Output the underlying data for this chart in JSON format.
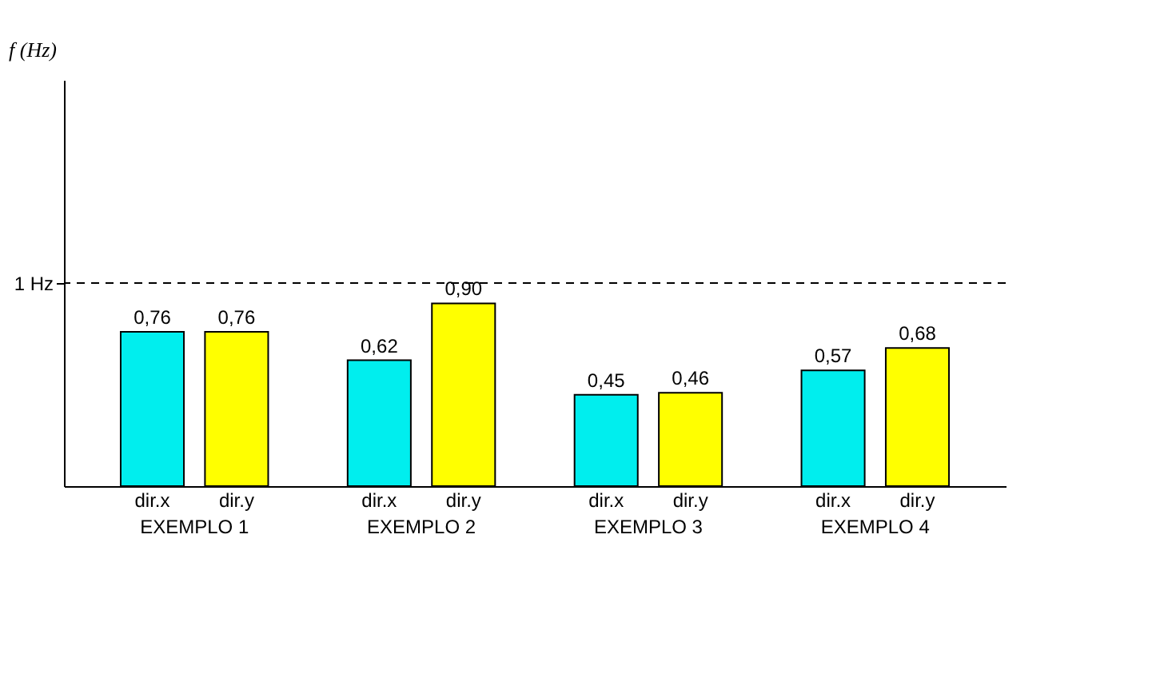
{
  "chart_data": {
    "type": "bar",
    "ylabel": "f (Hz)",
    "categories": [
      "EXEMPLO 1",
      "EXEMPLO 2",
      "EXEMPLO 3",
      "EXEMPLO 4"
    ],
    "series": [
      {
        "name": "dir.x",
        "color": "#00eeee",
        "values": [
          0.76,
          0.62,
          0.45,
          0.57
        ],
        "value_labels": [
          "0,76",
          "0,62",
          "0,45",
          "0,57"
        ]
      },
      {
        "name": "dir.y",
        "color": "#ffff00",
        "values": [
          0.76,
          0.9,
          0.46,
          0.68
        ],
        "value_labels": [
          "0,76",
          "0,90",
          "0,46",
          "0,68"
        ]
      }
    ],
    "ylim": [
      0,
      2
    ],
    "yticks": [
      {
        "value": 1,
        "label": "1 Hz"
      }
    ],
    "ref_lines": [
      {
        "axis": "y",
        "value": 1,
        "line_style": "dashed",
        "color": "#000000"
      }
    ],
    "grid": false,
    "legend": false
  }
}
